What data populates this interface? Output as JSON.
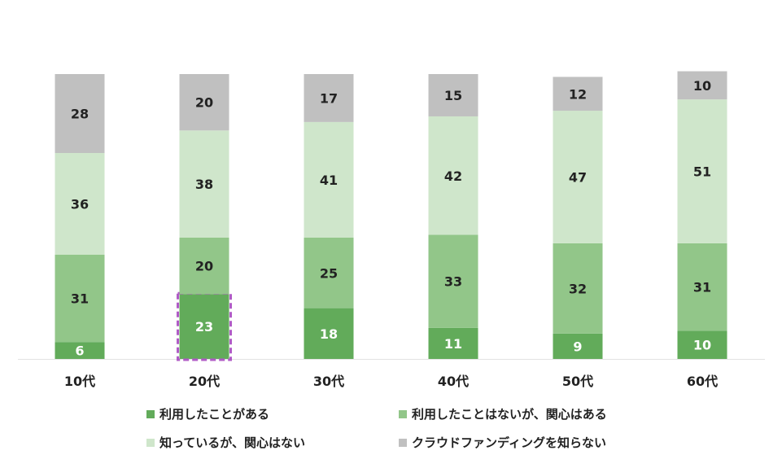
{
  "chart_data": {
    "type": "bar",
    "stacked": true,
    "categories": [
      "10代",
      "20代",
      "30代",
      "40代",
      "50代",
      "60代"
    ],
    "series": [
      {
        "name": "利用したことがある",
        "values": [
          6,
          23,
          18,
          11,
          9,
          10
        ],
        "color": "#62ab5a",
        "label_color": "#ffffff"
      },
      {
        "name": "利用したことはないが、関心はある",
        "values": [
          31,
          20,
          25,
          33,
          32,
          31
        ],
        "color": "#92c689",
        "label_color": "#222222"
      },
      {
        "name": "知っているが、関心はない",
        "values": [
          36,
          38,
          41,
          42,
          47,
          51
        ],
        "color": "#cfe6cb",
        "label_color": "#222222"
      },
      {
        "name": "クラウドファンディングを知らない",
        "values": [
          28,
          20,
          17,
          15,
          12,
          10
        ],
        "color": "#c0c0c0",
        "label_color": "#222222"
      }
    ],
    "highlight": {
      "category": "20代",
      "series": "利用したことがある",
      "color": "#b05bc6"
    },
    "legend_position": "bottom",
    "grid": false,
    "ylim": [
      0,
      101
    ]
  }
}
